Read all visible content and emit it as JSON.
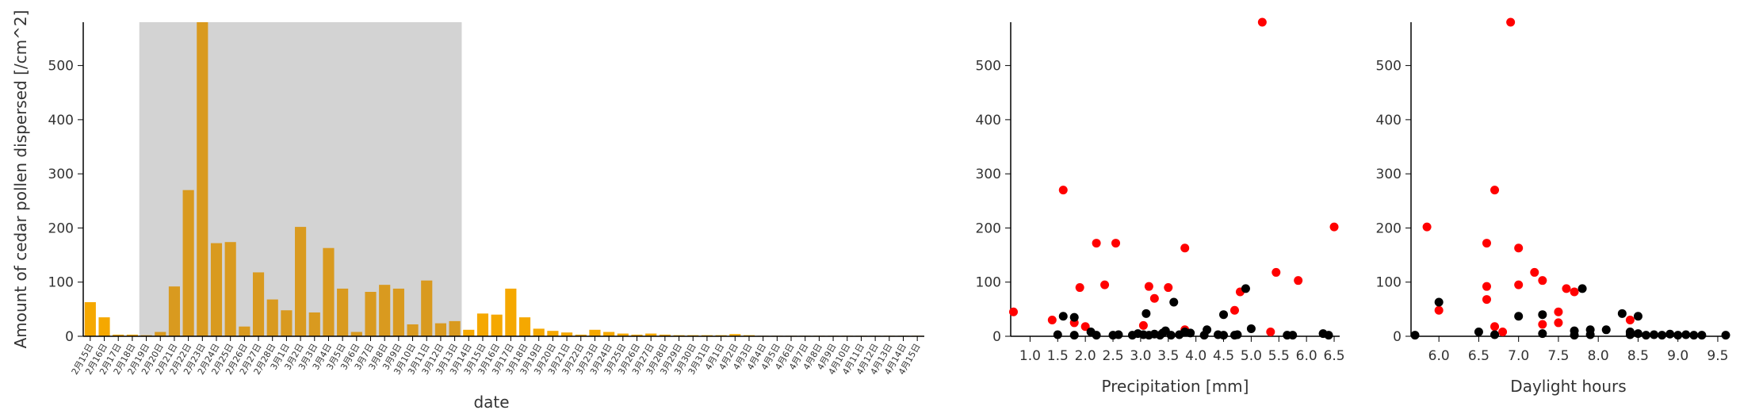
{
  "colors": {
    "bar_normal": "#f5a800",
    "bar_highlight": "#d99a1f",
    "highlight_band": "#d3d3d3",
    "point_red": "#ff0000",
    "point_black": "#000000",
    "axis": "#000000",
    "text": "#333333"
  },
  "chart_data": [
    {
      "type": "bar",
      "xlabel": "date",
      "ylabel": "Amount of cedar pollen dispersed [/cm^2]",
      "ylim": [
        0,
        580
      ],
      "yticks": [
        0,
        100,
        200,
        300,
        400,
        500
      ],
      "highlight_range": [
        "2月19日",
        "3月13日"
      ],
      "categories": [
        "2月15日",
        "2月16日",
        "2月17日",
        "2月18日",
        "2月19日",
        "2月20日",
        "2月21日",
        "2月22日",
        "2月23日",
        "2月24日",
        "2月25日",
        "2月26日",
        "2月27日",
        "2月28日",
        "3月1日",
        "3月2日",
        "3月3日",
        "3月4日",
        "3月5日",
        "3月6日",
        "3月7日",
        "3月8日",
        "3月9日",
        "3月10日",
        "3月11日",
        "3月12日",
        "3月13日",
        "3月14日",
        "3月15日",
        "3月16日",
        "3月17日",
        "3月18日",
        "3月19日",
        "3月20日",
        "3月21日",
        "3月22日",
        "3月23日",
        "3月24日",
        "3月25日",
        "3月26日",
        "3月27日",
        "3月28日",
        "3月29日",
        "3月30日",
        "3月31日",
        "4月1日",
        "4月2日",
        "4月3日",
        "4月4日",
        "4月5日",
        "4月6日",
        "4月7日",
        "4月8日",
        "4月9日",
        "4月10日",
        "4月11日",
        "4月12日",
        "4月13日",
        "4月14日",
        "4月15日"
      ],
      "values": [
        63,
        35,
        3,
        3,
        2,
        8,
        92,
        270,
        580,
        172,
        174,
        18,
        118,
        68,
        48,
        202,
        44,
        163,
        88,
        8,
        82,
        95,
        88,
        22,
        103,
        24,
        28,
        12,
        42,
        40,
        88,
        35,
        14,
        10,
        7,
        3,
        12,
        8,
        5,
        3,
        5,
        3,
        2,
        2,
        2,
        2,
        4,
        2,
        1,
        1,
        1,
        1,
        1,
        1,
        1,
        1,
        1,
        1,
        1,
        1
      ]
    },
    {
      "type": "scatter",
      "xlabel": "Precipitation [mm]",
      "xlim": [
        0.65,
        6.6
      ],
      "ylim": [
        0,
        580
      ],
      "xticks": [
        "1.0",
        "1.5",
        "2.0",
        "2.5",
        "3.0",
        "3.5",
        "4.0",
        "4.5",
        "5.0",
        "5.5",
        "6.0",
        "6.5"
      ],
      "yticks": [
        0,
        100,
        200,
        300,
        400,
        500
      ],
      "series": [
        {
          "color": "red",
          "points": [
            [
              0.7,
              45
            ],
            [
              1.4,
              30
            ],
            [
              1.6,
              270
            ],
            [
              1.8,
              25
            ],
            [
              1.9,
              90
            ],
            [
              2.0,
              18
            ],
            [
              2.2,
              172
            ],
            [
              2.35,
              95
            ],
            [
              2.55,
              172
            ],
            [
              3.05,
              20
            ],
            [
              3.15,
              92
            ],
            [
              3.25,
              70
            ],
            [
              3.5,
              90
            ],
            [
              3.8,
              163
            ],
            [
              3.8,
              12
            ],
            [
              4.7,
              48
            ],
            [
              4.8,
              82
            ],
            [
              5.2,
              580
            ],
            [
              5.35,
              8
            ],
            [
              5.45,
              118
            ],
            [
              5.85,
              103
            ],
            [
              6.5,
              202
            ]
          ]
        },
        {
          "color": "black",
          "points": [
            [
              1.5,
              3
            ],
            [
              1.6,
              37
            ],
            [
              1.8,
              2
            ],
            [
              1.8,
              35
            ],
            [
              2.1,
              8
            ],
            [
              2.2,
              2
            ],
            [
              2.5,
              2
            ],
            [
              2.6,
              3
            ],
            [
              2.85,
              2
            ],
            [
              2.95,
              5
            ],
            [
              3.05,
              3
            ],
            [
              3.1,
              42
            ],
            [
              3.15,
              2
            ],
            [
              3.25,
              4
            ],
            [
              3.35,
              2
            ],
            [
              3.4,
              6
            ],
            [
              3.45,
              10
            ],
            [
              3.55,
              2
            ],
            [
              3.6,
              63
            ],
            [
              3.7,
              3
            ],
            [
              3.8,
              8
            ],
            [
              3.9,
              6
            ],
            [
              4.15,
              2
            ],
            [
              4.2,
              12
            ],
            [
              4.4,
              3
            ],
            [
              4.5,
              40
            ],
            [
              4.5,
              2
            ],
            [
              4.7,
              2
            ],
            [
              4.75,
              3
            ],
            [
              4.9,
              88
            ],
            [
              5.0,
              14
            ],
            [
              5.65,
              2
            ],
            [
              5.75,
              2
            ],
            [
              6.3,
              5
            ],
            [
              6.4,
              2
            ]
          ]
        }
      ]
    },
    {
      "type": "scatter",
      "xlabel": "Daylight hours",
      "xlim": [
        5.65,
        9.6
      ],
      "ylim": [
        0,
        580
      ],
      "xticks": [
        "6.0",
        "6.5",
        "7.0",
        "7.5",
        "8.0",
        "8.5",
        "9.0",
        "9.5"
      ],
      "yticks": [
        0,
        100,
        200,
        300,
        400,
        500
      ],
      "series": [
        {
          "color": "red",
          "points": [
            [
              5.85,
              202
            ],
            [
              6.0,
              48
            ],
            [
              6.6,
              172
            ],
            [
              6.6,
              92
            ],
            [
              6.6,
              68
            ],
            [
              6.7,
              270
            ],
            [
              6.7,
              18
            ],
            [
              6.8,
              8
            ],
            [
              6.9,
              580
            ],
            [
              7.0,
              95
            ],
            [
              7.0,
              163
            ],
            [
              7.2,
              118
            ],
            [
              7.3,
              103
            ],
            [
              7.3,
              22
            ],
            [
              7.5,
              25
            ],
            [
              7.5,
              45
            ],
            [
              7.6,
              88
            ],
            [
              7.7,
              82
            ],
            [
              8.4,
              30
            ]
          ]
        },
        {
          "color": "black",
          "points": [
            [
              5.7,
              2
            ],
            [
              6.0,
              63
            ],
            [
              6.5,
              8
            ],
            [
              6.7,
              3
            ],
            [
              7.0,
              37
            ],
            [
              7.3,
              40
            ],
            [
              7.3,
              5
            ],
            [
              7.7,
              10
            ],
            [
              7.7,
              2
            ],
            [
              7.8,
              88
            ],
            [
              7.9,
              12
            ],
            [
              7.9,
              3
            ],
            [
              8.1,
              12
            ],
            [
              8.3,
              42
            ],
            [
              8.4,
              8
            ],
            [
              8.4,
              3
            ],
            [
              8.5,
              37
            ],
            [
              8.5,
              5
            ],
            [
              8.6,
              2
            ],
            [
              8.7,
              3
            ],
            [
              8.8,
              2
            ],
            [
              8.9,
              4
            ],
            [
              9.0,
              2
            ],
            [
              9.1,
              3
            ],
            [
              9.2,
              2
            ],
            [
              9.3,
              2
            ],
            [
              9.6,
              2
            ]
          ]
        }
      ]
    }
  ]
}
